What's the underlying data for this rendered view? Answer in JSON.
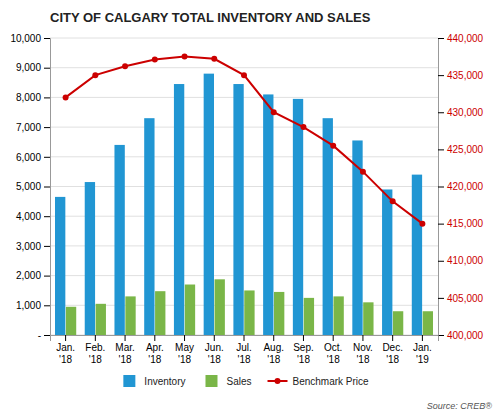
{
  "chart_data": {
    "type": "bar",
    "title": "CITY OF CALGARY TOTAL INVENTORY AND SALES",
    "categories": [
      "Jan.\n'18",
      "Feb.\n'18",
      "Mar.\n'18",
      "Apr.\n'18",
      "May\n'18",
      "Jun.\n'18",
      "Jul.\n'18",
      "Aug.\n'18",
      "Sep.\n'18",
      "Oct.\n'18",
      "Nov.\n'18",
      "Dec.\n'18",
      "Jan.\n'19"
    ],
    "series": [
      {
        "name": "Inventory",
        "color": "#2196d3",
        "values": [
          4650,
          5150,
          6400,
          7300,
          8450,
          8800,
          8450,
          8100,
          7950,
          7300,
          6550,
          4900,
          5400
        ]
      },
      {
        "name": "Sales",
        "color": "#7ab648",
        "values": [
          950,
          1050,
          1300,
          1475,
          1700,
          1875,
          1500,
          1450,
          1250,
          1300,
          1100,
          800,
          800
        ]
      },
      {
        "name": "Benchmark Price",
        "type": "line",
        "axis": "y2",
        "color": "#cc0000",
        "marker": "circle",
        "values": [
          432000,
          435000,
          436200,
          437100,
          437500,
          437200,
          435000,
          430000,
          428000,
          425500,
          422000,
          418000,
          415000
        ]
      }
    ],
    "ylim": [
      0,
      10000
    ],
    "yticks": [
      {
        "value": 0,
        "label": "-"
      },
      {
        "value": 1000,
        "label": "1,000"
      },
      {
        "value": 2000,
        "label": "2,000"
      },
      {
        "value": 3000,
        "label": "3,000"
      },
      {
        "value": 4000,
        "label": "4,000"
      },
      {
        "value": 5000,
        "label": "5,000"
      },
      {
        "value": 6000,
        "label": "6,000"
      },
      {
        "value": 7000,
        "label": "7,000"
      },
      {
        "value": 8000,
        "label": "8,000"
      },
      {
        "value": 9000,
        "label": "9,000"
      },
      {
        "value": 10000,
        "label": "10,000"
      }
    ],
    "y2lim": [
      400000,
      440000
    ],
    "y2ticks": [
      {
        "value": 400000,
        "label": "400,000"
      },
      {
        "value": 405000,
        "label": "405,000"
      },
      {
        "value": 410000,
        "label": "410,000"
      },
      {
        "value": 415000,
        "label": "415,000"
      },
      {
        "value": 420000,
        "label": "420,000"
      },
      {
        "value": 425000,
        "label": "425,000"
      },
      {
        "value": 430000,
        "label": "430,000"
      },
      {
        "value": 435000,
        "label": "435,000"
      },
      {
        "value": 440000,
        "label": "440,000"
      }
    ],
    "grid": true,
    "legend": "bottom",
    "annotations": [
      "Source: CREB®"
    ]
  }
}
